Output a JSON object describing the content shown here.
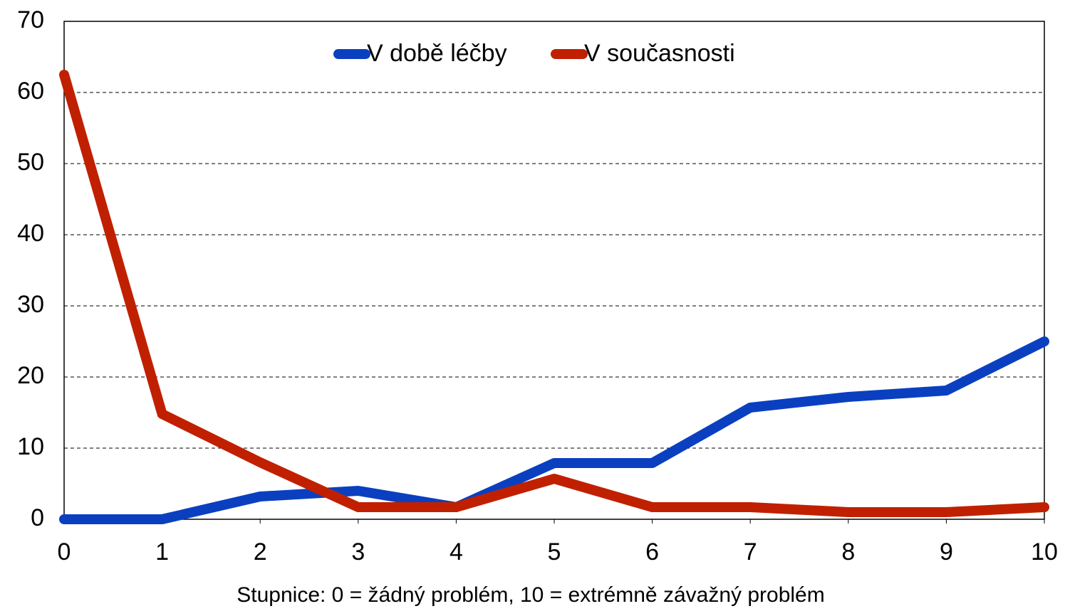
{
  "chart_data": {
    "type": "line",
    "xlabel": "Stupnice: 0 = žádný problém, 10 = extrémně závažný problém",
    "x": [
      0,
      1,
      2,
      3,
      4,
      5,
      6,
      7,
      8,
      9,
      10
    ],
    "series": [
      {
        "name": "V době léčby",
        "color": "#0a40c0",
        "values": [
          0,
          0,
          3.2,
          4,
          1.7,
          7.9,
          7.9,
          15.7,
          17.2,
          18.1,
          25
        ]
      },
      {
        "name": "V současnosti",
        "color": "#c02000",
        "values": [
          62.5,
          14.8,
          8,
          1.7,
          1.7,
          5.7,
          1.7,
          1.7,
          1,
          1,
          1.7
        ]
      }
    ],
    "xlim": [
      0,
      10
    ],
    "xticks": [
      0,
      1,
      2,
      3,
      4,
      5,
      6,
      7,
      8,
      9,
      10
    ],
    "ylim": [
      0,
      70
    ],
    "yticks": [
      0,
      10,
      20,
      30,
      40,
      50,
      60,
      70
    ],
    "grid": true,
    "legend": "top"
  }
}
